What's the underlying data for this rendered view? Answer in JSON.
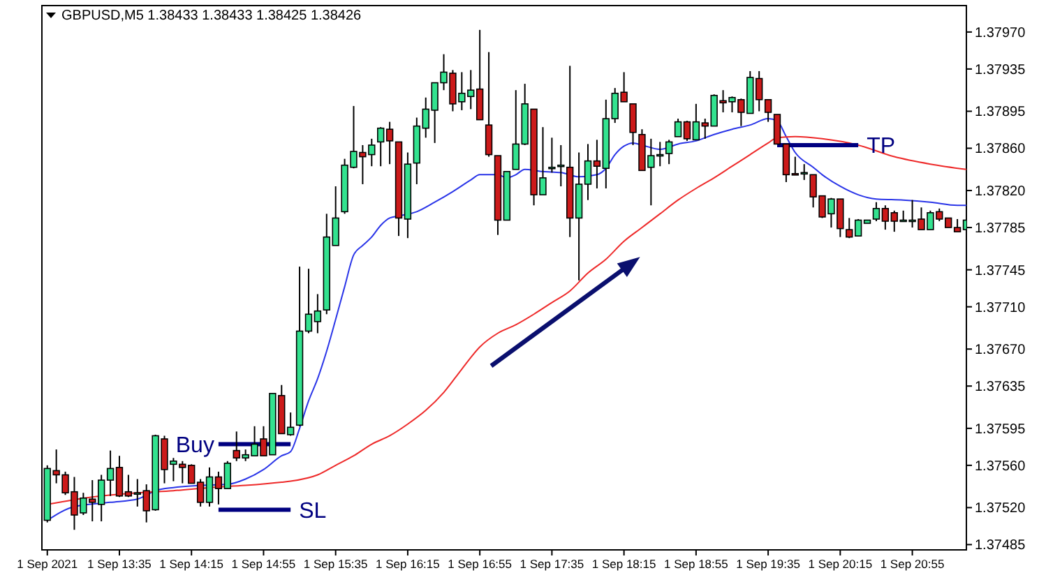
{
  "chart_data": {
    "type": "candlestick",
    "title": "GBPUSD,M5  1.38433 1.38433 1.38425 1.38426",
    "x": [
      "2021-09-01T12:55",
      "2021-09-01T13:00",
      "2021-09-01T13:05",
      "2021-09-01T13:10",
      "2021-09-01T13:15",
      "2021-09-01T13:20",
      "2021-09-01T13:25",
      "2021-09-01T13:30",
      "2021-09-01T13:35",
      "2021-09-01T13:40",
      "2021-09-01T13:45",
      "2021-09-01T13:50",
      "2021-09-01T13:55",
      "2021-09-01T14:00",
      "2021-09-01T14:05",
      "2021-09-01T14:10",
      "2021-09-01T14:15",
      "2021-09-01T14:20",
      "2021-09-01T14:25",
      "2021-09-01T14:30",
      "2021-09-01T14:35",
      "2021-09-01T14:40",
      "2021-09-01T14:45",
      "2021-09-01T14:50",
      "2021-09-01T14:55",
      "2021-09-01T15:00",
      "2021-09-01T15:05",
      "2021-09-01T15:10",
      "2021-09-01T15:15",
      "2021-09-01T15:20",
      "2021-09-01T15:25",
      "2021-09-01T15:30",
      "2021-09-01T15:35",
      "2021-09-01T15:40",
      "2021-09-01T15:45",
      "2021-09-01T15:50",
      "2021-09-01T15:55",
      "2021-09-01T16:00",
      "2021-09-01T16:05",
      "2021-09-01T16:10",
      "2021-09-01T16:15",
      "2021-09-01T16:20",
      "2021-09-01T16:25",
      "2021-09-01T16:30",
      "2021-09-01T16:35",
      "2021-09-01T16:40",
      "2021-09-01T16:45",
      "2021-09-01T16:50",
      "2021-09-01T16:55",
      "2021-09-01T17:00",
      "2021-09-01T17:05",
      "2021-09-01T17:10",
      "2021-09-01T17:15",
      "2021-09-01T17:20",
      "2021-09-01T17:25",
      "2021-09-01T17:30",
      "2021-09-01T17:35",
      "2021-09-01T17:40",
      "2021-09-01T17:45",
      "2021-09-01T17:50",
      "2021-09-01T17:55",
      "2021-09-01T18:00",
      "2021-09-01T18:05",
      "2021-09-01T18:10",
      "2021-09-01T18:15",
      "2021-09-01T18:20",
      "2021-09-01T18:25",
      "2021-09-01T18:30",
      "2021-09-01T18:35",
      "2021-09-01T18:40",
      "2021-09-01T18:45",
      "2021-09-01T18:50",
      "2021-09-01T18:55",
      "2021-09-01T19:00",
      "2021-09-01T19:05",
      "2021-09-01T19:10",
      "2021-09-01T19:15",
      "2021-09-01T19:20",
      "2021-09-01T19:25",
      "2021-09-01T19:30",
      "2021-09-01T19:35",
      "2021-09-01T19:40",
      "2021-09-01T19:45",
      "2021-09-01T19:50",
      "2021-09-01T19:55",
      "2021-09-01T20:00",
      "2021-09-01T20:05",
      "2021-09-01T20:10",
      "2021-09-01T20:15",
      "2021-09-01T20:20",
      "2021-09-01T20:25",
      "2021-09-01T20:30",
      "2021-09-01T20:35",
      "2021-09-01T20:40",
      "2021-09-01T20:45",
      "2021-09-01T20:50",
      "2021-09-01T20:55",
      "2021-09-01T21:00",
      "2021-09-01T21:05",
      "2021-09-01T21:10",
      "2021-09-01T21:15",
      "2021-09-01T21:20",
      "2021-09-01T21:25"
    ],
    "ohlc": [
      [
        1.37508,
        1.3756,
        1.37506,
        1.37557
      ],
      [
        1.37555,
        1.37575,
        1.37543,
        1.37551
      ],
      [
        1.37551,
        1.37554,
        1.37532,
        1.37534
      ],
      [
        1.37535,
        1.37549,
        1.37499,
        1.37513
      ],
      [
        1.37515,
        1.37534,
        1.37513,
        1.37529
      ],
      [
        1.37528,
        1.37546,
        1.37507,
        1.37525
      ],
      [
        1.37523,
        1.37551,
        1.37507,
        1.37546
      ],
      [
        1.37546,
        1.37574,
        1.37531,
        1.37557
      ],
      [
        1.37558,
        1.37569,
        1.3753,
        1.37531
      ],
      [
        1.37535,
        1.37551,
        1.3753,
        1.37531
      ],
      [
        1.37533,
        1.37547,
        1.37521,
        1.37534
      ],
      [
        1.37536,
        1.37542,
        1.37506,
        1.37517
      ],
      [
        1.37518,
        1.37589,
        1.37517,
        1.37588
      ],
      [
        1.37585,
        1.37588,
        1.37543,
        1.37556
      ],
      [
        1.37561,
        1.37567,
        1.37545,
        1.37564
      ],
      [
        1.37561,
        1.37564,
        1.37543,
        1.37558
      ],
      [
        1.3756,
        1.37561,
        1.37543,
        1.37543
      ],
      [
        1.37544,
        1.37547,
        1.37521,
        1.37525
      ],
      [
        1.37525,
        1.37558,
        1.37521,
        1.37549
      ],
      [
        1.37549,
        1.37554,
        1.37523,
        1.37538
      ],
      [
        1.37538,
        1.37564,
        1.37538,
        1.37562
      ],
      [
        1.37574,
        1.37592,
        1.37564,
        1.37567
      ],
      [
        1.37567,
        1.37575,
        1.37564,
        1.3757
      ],
      [
        1.37569,
        1.37597,
        1.37569,
        1.3758
      ],
      [
        1.37585,
        1.37597,
        1.37569,
        1.37569
      ],
      [
        1.3757,
        1.37628,
        1.3757,
        1.37628
      ],
      [
        1.37626,
        1.37636,
        1.3759,
        1.3759
      ],
      [
        1.37589,
        1.3761,
        1.37588,
        1.37596
      ],
      [
        1.37598,
        1.37748,
        1.37597,
        1.37687
      ],
      [
        1.37687,
        1.37746,
        1.37685,
        1.37703
      ],
      [
        1.37696,
        1.37722,
        1.37685,
        1.37706
      ],
      [
        1.37707,
        1.37798,
        1.37703,
        1.37776
      ],
      [
        1.37768,
        1.37824,
        1.37768,
        1.37794
      ],
      [
        1.378,
        1.3785,
        1.37798,
        1.37844
      ],
      [
        1.37842,
        1.379,
        1.37841,
        1.37857
      ],
      [
        1.37856,
        1.37863,
        1.37826,
        1.37852
      ],
      [
        1.37854,
        1.37869,
        1.37843,
        1.37863
      ],
      [
        1.37866,
        1.3788,
        1.37843,
        1.37879
      ],
      [
        1.37878,
        1.37885,
        1.37845,
        1.37867
      ],
      [
        1.37866,
        1.37866,
        1.37777,
        1.37794
      ],
      [
        1.37793,
        1.37856,
        1.37775,
        1.37845
      ],
      [
        1.37846,
        1.37889,
        1.37826,
        1.37881
      ],
      [
        1.37879,
        1.37908,
        1.3787,
        1.37897
      ],
      [
        1.37896,
        1.37922,
        1.37865,
        1.37922
      ],
      [
        1.37922,
        1.37949,
        1.37915,
        1.37932
      ],
      [
        1.37931,
        1.37934,
        1.37895,
        1.37902
      ],
      [
        1.37904,
        1.37932,
        1.37896,
        1.37912
      ],
      [
        1.37909,
        1.37934,
        1.37897,
        1.37915
      ],
      [
        1.37916,
        1.37972,
        1.37887,
        1.37887
      ],
      [
        1.37882,
        1.37951,
        1.37852,
        1.37854
      ],
      [
        1.37853,
        1.37853,
        1.37778,
        1.37792
      ],
      [
        1.37792,
        1.37838,
        1.37792,
        1.37838
      ],
      [
        1.3784,
        1.37915,
        1.3784,
        1.37864
      ],
      [
        1.37864,
        1.37921,
        1.37863,
        1.37902
      ],
      [
        1.37897,
        1.37897,
        1.37806,
        1.37816
      ],
      [
        1.37816,
        1.3788,
        1.37816,
        1.37832
      ],
      [
        1.37842,
        1.3787,
        1.37837,
        1.37842
      ],
      [
        1.37844,
        1.37863,
        1.37824,
        1.37844
      ],
      [
        1.37842,
        1.37938,
        1.37776,
        1.37794
      ],
      [
        1.37794,
        1.37856,
        1.37735,
        1.37826
      ],
      [
        1.37826,
        1.37864,
        1.37811,
        1.37848
      ],
      [
        1.37848,
        1.37868,
        1.37822,
        1.37843
      ],
      [
        1.37841,
        1.37906,
        1.37822,
        1.37888
      ],
      [
        1.37888,
        1.37917,
        1.37884,
        1.37912
      ],
      [
        1.37913,
        1.37932,
        1.37904,
        1.37904
      ],
      [
        1.37902,
        1.37902,
        1.37863,
        1.37875
      ],
      [
        1.37873,
        1.37878,
        1.37839,
        1.37839
      ],
      [
        1.37842,
        1.37869,
        1.37806,
        1.37853
      ],
      [
        1.37854,
        1.37866,
        1.37843,
        1.37854
      ],
      [
        1.37855,
        1.37868,
        1.37845,
        1.37866
      ],
      [
        1.37871,
        1.37888,
        1.37871,
        1.37885
      ],
      [
        1.37885,
        1.37886,
        1.37867,
        1.37869
      ],
      [
        1.37868,
        1.37902,
        1.37868,
        1.37885
      ],
      [
        1.37884,
        1.37888,
        1.37869,
        1.37881
      ],
      [
        1.37881,
        1.37911,
        1.37881,
        1.3791
      ],
      [
        1.37905,
        1.37915,
        1.37894,
        1.37903
      ],
      [
        1.37904,
        1.37909,
        1.37894,
        1.37908
      ],
      [
        1.37906,
        1.37907,
        1.37881,
        1.37894
      ],
      [
        1.37893,
        1.37933,
        1.37893,
        1.37927
      ],
      [
        1.37926,
        1.37933,
        1.37895,
        1.37906
      ],
      [
        1.37906,
        1.37906,
        1.37885,
        1.37894
      ],
      [
        1.37892,
        1.37892,
        1.37864,
        1.37864
      ],
      [
        1.37864,
        1.37864,
        1.37828,
        1.37835
      ],
      [
        1.37836,
        1.37852,
        1.37835,
        1.37835
      ],
      [
        1.37836,
        1.37845,
        1.3783,
        1.37837
      ],
      [
        1.37835,
        1.37835,
        1.37804,
        1.37814
      ],
      [
        1.37815,
        1.37815,
        1.37794,
        1.37795
      ],
      [
        1.37798,
        1.37813,
        1.37785,
        1.37812
      ],
      [
        1.37812,
        1.37812,
        1.37776,
        1.37784
      ],
      [
        1.37783,
        1.37794,
        1.37775,
        1.37776
      ],
      [
        1.37777,
        1.37793,
        1.37777,
        1.37792
      ],
      [
        1.37789,
        1.37792,
        1.37789,
        1.37792
      ],
      [
        1.37793,
        1.37809,
        1.37791,
        1.37803
      ],
      [
        1.37803,
        1.37806,
        1.37783,
        1.37791
      ],
      [
        1.37799,
        1.37801,
        1.37781,
        1.37791
      ],
      [
        1.37792,
        1.37801,
        1.37791,
        1.37792
      ],
      [
        1.37791,
        1.37811,
        1.37785,
        1.37792
      ],
      [
        1.37793,
        1.37804,
        1.37783,
        1.37783
      ],
      [
        1.37783,
        1.37801,
        1.37783,
        1.37799
      ],
      [
        1.378,
        1.37803,
        1.37791,
        1.37793
      ],
      [
        1.37794,
        1.37794,
        1.37785,
        1.37785
      ],
      [
        1.37785,
        1.37793,
        1.37781,
        1.37781
      ],
      [
        1.37783,
        1.37793,
        1.37783,
        1.37792
      ]
    ],
    "series": [
      {
        "type": "line",
        "color": "#2a35e8",
        "x": [
          "2021-09-01T12:55",
          "2021-09-01T13:10",
          "2021-09-01T13:30",
          "2021-09-01T13:45",
          "2021-09-01T13:55",
          "2021-09-01T14:05",
          "2021-09-01T14:20",
          "2021-09-01T14:35",
          "2021-09-01T14:45",
          "2021-09-01T14:55",
          "2021-09-01T15:05",
          "2021-09-01T15:10",
          "2021-09-01T15:15",
          "2021-09-01T15:20",
          "2021-09-01T15:25",
          "2021-09-01T15:30",
          "2021-09-01T15:35",
          "2021-09-01T15:40",
          "2021-09-01T15:45",
          "2021-09-01T15:50",
          "2021-09-01T15:55",
          "2021-09-01T16:00",
          "2021-09-01T16:05",
          "2021-09-01T16:10",
          "2021-09-01T16:20",
          "2021-09-01T16:30",
          "2021-09-01T16:40",
          "2021-09-01T16:50",
          "2021-09-01T16:55",
          "2021-09-01T17:05",
          "2021-09-01T17:10",
          "2021-09-01T17:15",
          "2021-09-01T17:20",
          "2021-09-01T17:30",
          "2021-09-01T17:40",
          "2021-09-01T17:50",
          "2021-09-01T18:00",
          "2021-09-01T18:05",
          "2021-09-01T18:10",
          "2021-09-01T18:15",
          "2021-09-01T18:20",
          "2021-09-01T18:25",
          "2021-09-01T18:35",
          "2021-09-01T18:45",
          "2021-09-01T18:55",
          "2021-09-01T19:05",
          "2021-09-01T19:15",
          "2021-09-01T19:25",
          "2021-09-01T19:35",
          "2021-09-01T19:40",
          "2021-09-01T19:45",
          "2021-09-01T19:50",
          "2021-09-01T20:00",
          "2021-09-01T20:05",
          "2021-09-01T20:15",
          "2021-09-01T20:25",
          "2021-09-01T20:35",
          "2021-09-01T20:50",
          "2021-09-01T21:05",
          "2021-09-01T21:20",
          "2021-09-01T21:25"
        ],
        "values": [
          1.37508,
          1.37521,
          1.37525,
          1.37528,
          1.37536,
          1.37539,
          1.37541,
          1.37542,
          1.37547,
          1.37556,
          1.37569,
          1.37573,
          1.37595,
          1.37621,
          1.37642,
          1.37668,
          1.37698,
          1.37729,
          1.37759,
          1.37768,
          1.37776,
          1.37787,
          1.37794,
          1.37796,
          1.378,
          1.37809,
          1.37819,
          1.3783,
          1.37835,
          1.37835,
          1.37832,
          1.37835,
          1.3784,
          1.37838,
          1.37837,
          1.37833,
          1.37835,
          1.37841,
          1.37854,
          1.37862,
          1.37865,
          1.37863,
          1.37859,
          1.37864,
          1.37867,
          1.37873,
          1.37878,
          1.37882,
          1.37888,
          1.37886,
          1.37871,
          1.37856,
          1.37842,
          1.37835,
          1.37824,
          1.37816,
          1.37812,
          1.37811,
          1.37809,
          1.37806,
          1.37806
        ]
      },
      {
        "type": "line",
        "color": "#ee2a2a",
        "x": [
          "2021-09-01T12:55",
          "2021-09-01T13:20",
          "2021-09-01T13:45",
          "2021-09-01T14:05",
          "2021-09-01T14:25",
          "2021-09-01T14:45",
          "2021-09-01T15:05",
          "2021-09-01T15:10",
          "2021-09-01T15:25",
          "2021-09-01T15:35",
          "2021-09-01T15:45",
          "2021-09-01T15:55",
          "2021-09-01T16:05",
          "2021-09-01T16:15",
          "2021-09-01T16:25",
          "2021-09-01T16:35",
          "2021-09-01T16:45",
          "2021-09-01T16:55",
          "2021-09-01T17:05",
          "2021-09-01T17:15",
          "2021-09-01T17:25",
          "2021-09-01T17:35",
          "2021-09-01T17:45",
          "2021-09-01T17:55",
          "2021-09-01T18:05",
          "2021-09-01T18:15",
          "2021-09-01T18:25",
          "2021-09-01T18:35",
          "2021-09-01T18:45",
          "2021-09-01T18:55",
          "2021-09-01T19:05",
          "2021-09-01T19:15",
          "2021-09-01T19:25",
          "2021-09-01T19:35",
          "2021-09-01T19:40",
          "2021-09-01T19:50",
          "2021-09-01T20:05",
          "2021-09-01T20:25",
          "2021-09-01T20:45",
          "2021-09-01T21:05",
          "2021-09-01T21:25"
        ],
        "values": [
          1.37523,
          1.3753,
          1.37534,
          1.37536,
          1.37539,
          1.37541,
          1.37544,
          1.37545,
          1.37551,
          1.3756,
          1.37569,
          1.3758,
          1.37588,
          1.37599,
          1.37612,
          1.37629,
          1.37651,
          1.37672,
          1.37685,
          1.37693,
          1.37703,
          1.37714,
          1.37725,
          1.37742,
          1.37755,
          1.37772,
          1.37785,
          1.37798,
          1.37811,
          1.37822,
          1.37832,
          1.37843,
          1.37854,
          1.37865,
          1.3787,
          1.37871,
          1.37869,
          1.37863,
          1.37852,
          1.37845,
          1.3784
        ]
      },
      {
        "type": "line",
        "color": "#000080",
        "x": [
          "2021-09-01T14:30",
          "2021-09-01T15:10"
        ],
        "values": [
          1.3758,
          1.3758
        ]
      },
      {
        "type": "line",
        "color": "#000080",
        "x": [
          "2021-09-01T14:30",
          "2021-09-01T15:10"
        ],
        "values": [
          1.37518,
          1.37518
        ]
      },
      {
        "type": "line",
        "color": "#000080",
        "x": [
          "2021-09-01T19:40",
          "2021-09-01T20:25"
        ],
        "values": [
          1.37863,
          1.37863
        ]
      }
    ],
    "annotations": [
      {
        "text": "Buy",
        "x": "2021-09-01T14:30",
        "y": 1.3758
      },
      {
        "text": "SL",
        "x": "2021-09-01T15:10",
        "y": 1.37518
      },
      {
        "text": "TP",
        "x": "2021-09-01T20:25",
        "y": 1.37863
      }
    ],
    "xlim": [
      "2021-09-01T12:52",
      "2021-09-01T21:25"
    ],
    "xticks": [
      {
        "value": "2021-09-01T12:55",
        "label": "1 Sep 2021"
      },
      {
        "value": "2021-09-01T13:35",
        "label": "1 Sep 13:35"
      },
      {
        "value": "2021-09-01T14:15",
        "label": "1 Sep 14:15"
      },
      {
        "value": "2021-09-01T14:55",
        "label": "1 Sep 14:55"
      },
      {
        "value": "2021-09-01T15:35",
        "label": "1 Sep 15:35"
      },
      {
        "value": "2021-09-01T16:15",
        "label": "1 Sep 16:15"
      },
      {
        "value": "2021-09-01T16:55",
        "label": "1 Sep 16:55"
      },
      {
        "value": "2021-09-01T17:35",
        "label": "1 Sep 17:35"
      },
      {
        "value": "2021-09-01T18:15",
        "label": "1 Sep 18:15"
      },
      {
        "value": "2021-09-01T18:55",
        "label": "1 Sep 18:55"
      },
      {
        "value": "2021-09-01T19:35",
        "label": "1 Sep 19:35"
      },
      {
        "value": "2021-09-01T20:15",
        "label": "1 Sep 20:15"
      },
      {
        "value": "2021-09-01T20:55",
        "label": "1 Sep 20:55"
      }
    ],
    "ylim": [
      1.3748,
      1.37995
    ],
    "yticks": [
      {
        "value": 1.37485,
        "label": "1.37485"
      },
      {
        "value": 1.3752,
        "label": "1.37520"
      },
      {
        "value": 1.3756,
        "label": "1.37560"
      },
      {
        "value": 1.37595,
        "label": "1.37595"
      },
      {
        "value": 1.37635,
        "label": "1.37635"
      },
      {
        "value": 1.3767,
        "label": "1.37670"
      },
      {
        "value": 1.3771,
        "label": "1.37710"
      },
      {
        "value": 1.37745,
        "label": "1.37745"
      },
      {
        "value": 1.37785,
        "label": "1.37785"
      },
      {
        "value": 1.3782,
        "label": "1.37820"
      },
      {
        "value": 1.3786,
        "label": "1.37860"
      },
      {
        "value": 1.37895,
        "label": "1.37895"
      },
      {
        "value": 1.37935,
        "label": "1.37935"
      },
      {
        "value": 1.3797,
        "label": "1.37970"
      }
    ]
  }
}
